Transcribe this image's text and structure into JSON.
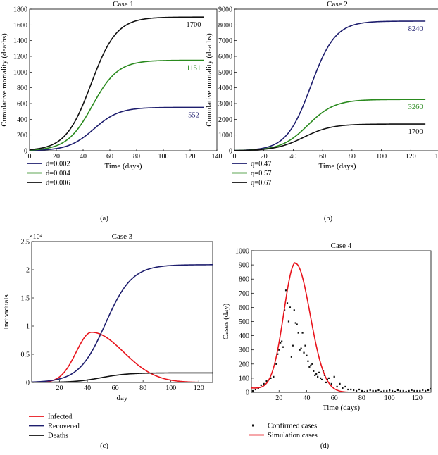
{
  "colors": {
    "blue": "#1e1e6e",
    "green": "#2a8a1e",
    "black": "#111111",
    "red": "#e8141c"
  },
  "chart_data": [
    {
      "id": "a",
      "type": "line",
      "panel_label": "(a)",
      "title": "Case 1",
      "xlabel": "Time (days)",
      "ylabel": "Cumulative mortality (deaths)",
      "xlim": [
        0,
        140
      ],
      "ylim": [
        0,
        1800
      ],
      "xticks": [
        "0",
        "20",
        "40",
        "60",
        "80",
        "100",
        "120",
        "140"
      ],
      "yticks": [
        "0",
        "200",
        "400",
        "600",
        "800",
        "1000",
        "1200",
        "1400",
        "1600",
        "1800"
      ],
      "legend_position": "below",
      "series": [
        {
          "name": "d=0.002",
          "color": "#1e1e6e",
          "values": {
            "final": 552,
            "midpoint": 48,
            "steepness": 0.105,
            "end_day": 130
          },
          "end_label": "552"
        },
        {
          "name": "d=0.004",
          "color": "#2a8a1e",
          "values": {
            "final": 1151,
            "midpoint": 47,
            "steepness": 0.105,
            "end_day": 130
          },
          "end_label": "1151"
        },
        {
          "name": "d=0.006",
          "color": "#111111",
          "values": {
            "final": 1700,
            "midpoint": 46,
            "steepness": 0.105,
            "end_day": 130
          },
          "end_label": "1700"
        }
      ]
    },
    {
      "id": "b",
      "type": "line",
      "panel_label": "(b)",
      "title": "Case 2",
      "xlabel": "Time (days)",
      "ylabel": "Cumulative mortality (deaths)",
      "xlim": [
        0,
        140
      ],
      "ylim": [
        0,
        9000
      ],
      "xticks": [
        "0",
        "20",
        "40",
        "60",
        "80",
        "100",
        "120",
        "140"
      ],
      "yticks": [
        "0",
        "1000",
        "2000",
        "3000",
        "4000",
        "5000",
        "6000",
        "7000",
        "8000",
        "9000"
      ],
      "legend_position": "below",
      "series": [
        {
          "name": "q=0.47",
          "color": "#1e1e6e",
          "values": {
            "final": 8240,
            "midpoint": 52,
            "steepness": 0.12,
            "end_day": 130
          },
          "end_label": "8240"
        },
        {
          "name": "q=0.57",
          "color": "#2a8a1e",
          "values": {
            "final": 3260,
            "midpoint": 50,
            "steepness": 0.11,
            "end_day": 130
          },
          "end_label": "3260"
        },
        {
          "name": "q=0.67",
          "color": "#111111",
          "values": {
            "final": 1700,
            "midpoint": 47,
            "steepness": 0.105,
            "end_day": 130
          },
          "end_label": "1700"
        }
      ]
    },
    {
      "id": "c",
      "type": "line",
      "panel_label": "(c)",
      "title": "Case 3",
      "xlabel": "day",
      "ylabel": "Individuals",
      "xlim": [
        0,
        130
      ],
      "ylim": [
        0,
        25000
      ],
      "xticks": [
        "20",
        "40",
        "60",
        "80",
        "100",
        "120"
      ],
      "yticks": [
        "0",
        "0.5",
        "1",
        "1.5",
        "2",
        "2.5"
      ],
      "yscale_label": "×10⁴",
      "legend_position": "below",
      "series": [
        {
          "name": "Infected",
          "color": "#e8141c",
          "values": {
            "peak_day": 43,
            "peak": 8900,
            "end_day": 130
          }
        },
        {
          "name": "Recovered",
          "color": "#1e1e6e",
          "values": {
            "final": 20900,
            "midpoint": 53,
            "steepness": 0.105,
            "end_day": 130
          }
        },
        {
          "name": "Deaths",
          "color": "#111111",
          "values": {
            "final": 1700,
            "midpoint": 50,
            "steepness": 0.105,
            "end_day": 130
          }
        }
      ]
    },
    {
      "id": "d",
      "type": "scatter",
      "panel_label": "(d)",
      "title": "Case 4",
      "xlabel": "Time (days)",
      "ylabel": "Cases (day)",
      "xlim": [
        0,
        130
      ],
      "ylim": [
        0,
        1000
      ],
      "xticks": [
        "20",
        "40",
        "60",
        "80",
        "100",
        "120"
      ],
      "yticks": [
        "0",
        "100",
        "200",
        "300",
        "400",
        "500",
        "600",
        "700",
        "800",
        "900",
        "1000"
      ],
      "legend_position": "below",
      "series": [
        {
          "name": "Confirmed cases",
          "color": "#111111",
          "marker": "dot",
          "x": [
            1,
            3,
            5,
            7,
            9,
            11,
            13,
            14,
            16,
            18,
            19,
            20,
            21,
            22,
            23,
            24,
            25,
            26,
            27,
            28,
            29,
            30,
            31,
            32,
            33,
            34,
            35,
            36,
            37,
            38,
            39,
            40,
            41,
            42,
            43,
            44,
            45,
            46,
            47,
            48,
            49,
            50,
            51,
            52,
            53,
            54,
            55,
            56,
            58,
            60,
            62,
            64,
            66,
            68,
            70,
            72,
            74,
            76,
            78,
            80,
            82,
            84,
            86,
            88,
            90,
            92,
            94,
            96,
            98,
            100,
            102,
            104,
            106,
            108,
            110,
            112,
            114,
            116,
            118,
            120,
            122,
            124,
            126,
            128,
            130
          ],
          "y": [
            10,
            20,
            30,
            50,
            60,
            80,
            90,
            100,
            110,
            200,
            270,
            300,
            350,
            360,
            320,
            580,
            720,
            630,
            500,
            600,
            250,
            330,
            580,
            490,
            480,
            420,
            300,
            310,
            420,
            280,
            330,
            260,
            220,
            180,
            190,
            200,
            150,
            120,
            130,
            110,
            140,
            100,
            90,
            150,
            120,
            70,
            90,
            100,
            60,
            110,
            40,
            60,
            30,
            40,
            20,
            20,
            15,
            10,
            20,
            10,
            5,
            10,
            15,
            10,
            10,
            15,
            5,
            10,
            10,
            15,
            10,
            5,
            15,
            10,
            10,
            5,
            10,
            15,
            10,
            10,
            10,
            15,
            10,
            15,
            25
          ]
        },
        {
          "name": "Simulation cases",
          "color": "#e8141c",
          "marker": "line",
          "values": {
            "peak_day": 32,
            "peak": 910,
            "baseline_start": 30,
            "end_day": 130
          }
        }
      ]
    }
  ]
}
